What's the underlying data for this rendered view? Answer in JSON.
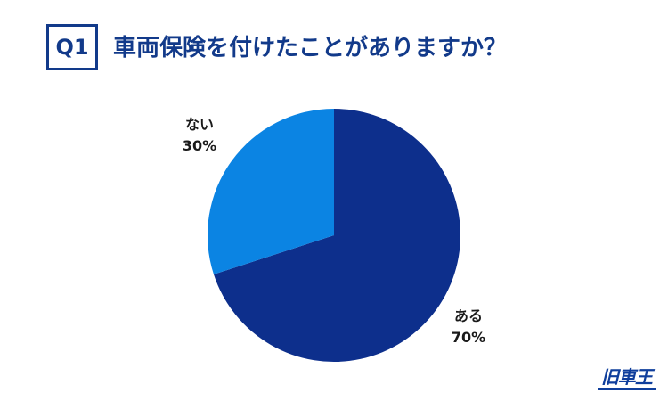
{
  "header": {
    "badge": "Q1",
    "title": "車両保険を付けたことがありますか？"
  },
  "chart_data": {
    "type": "pie",
    "categories": [
      "ある",
      "ない"
    ],
    "values": [
      70,
      30
    ],
    "value_labels": [
      "70%",
      "30%"
    ],
    "colors": [
      "#0d2f8c",
      "#0b84e3"
    ],
    "start_angle_deg": 0,
    "direction": "clockwise",
    "legend": "none"
  },
  "logo": {
    "text": "旧車王"
  }
}
